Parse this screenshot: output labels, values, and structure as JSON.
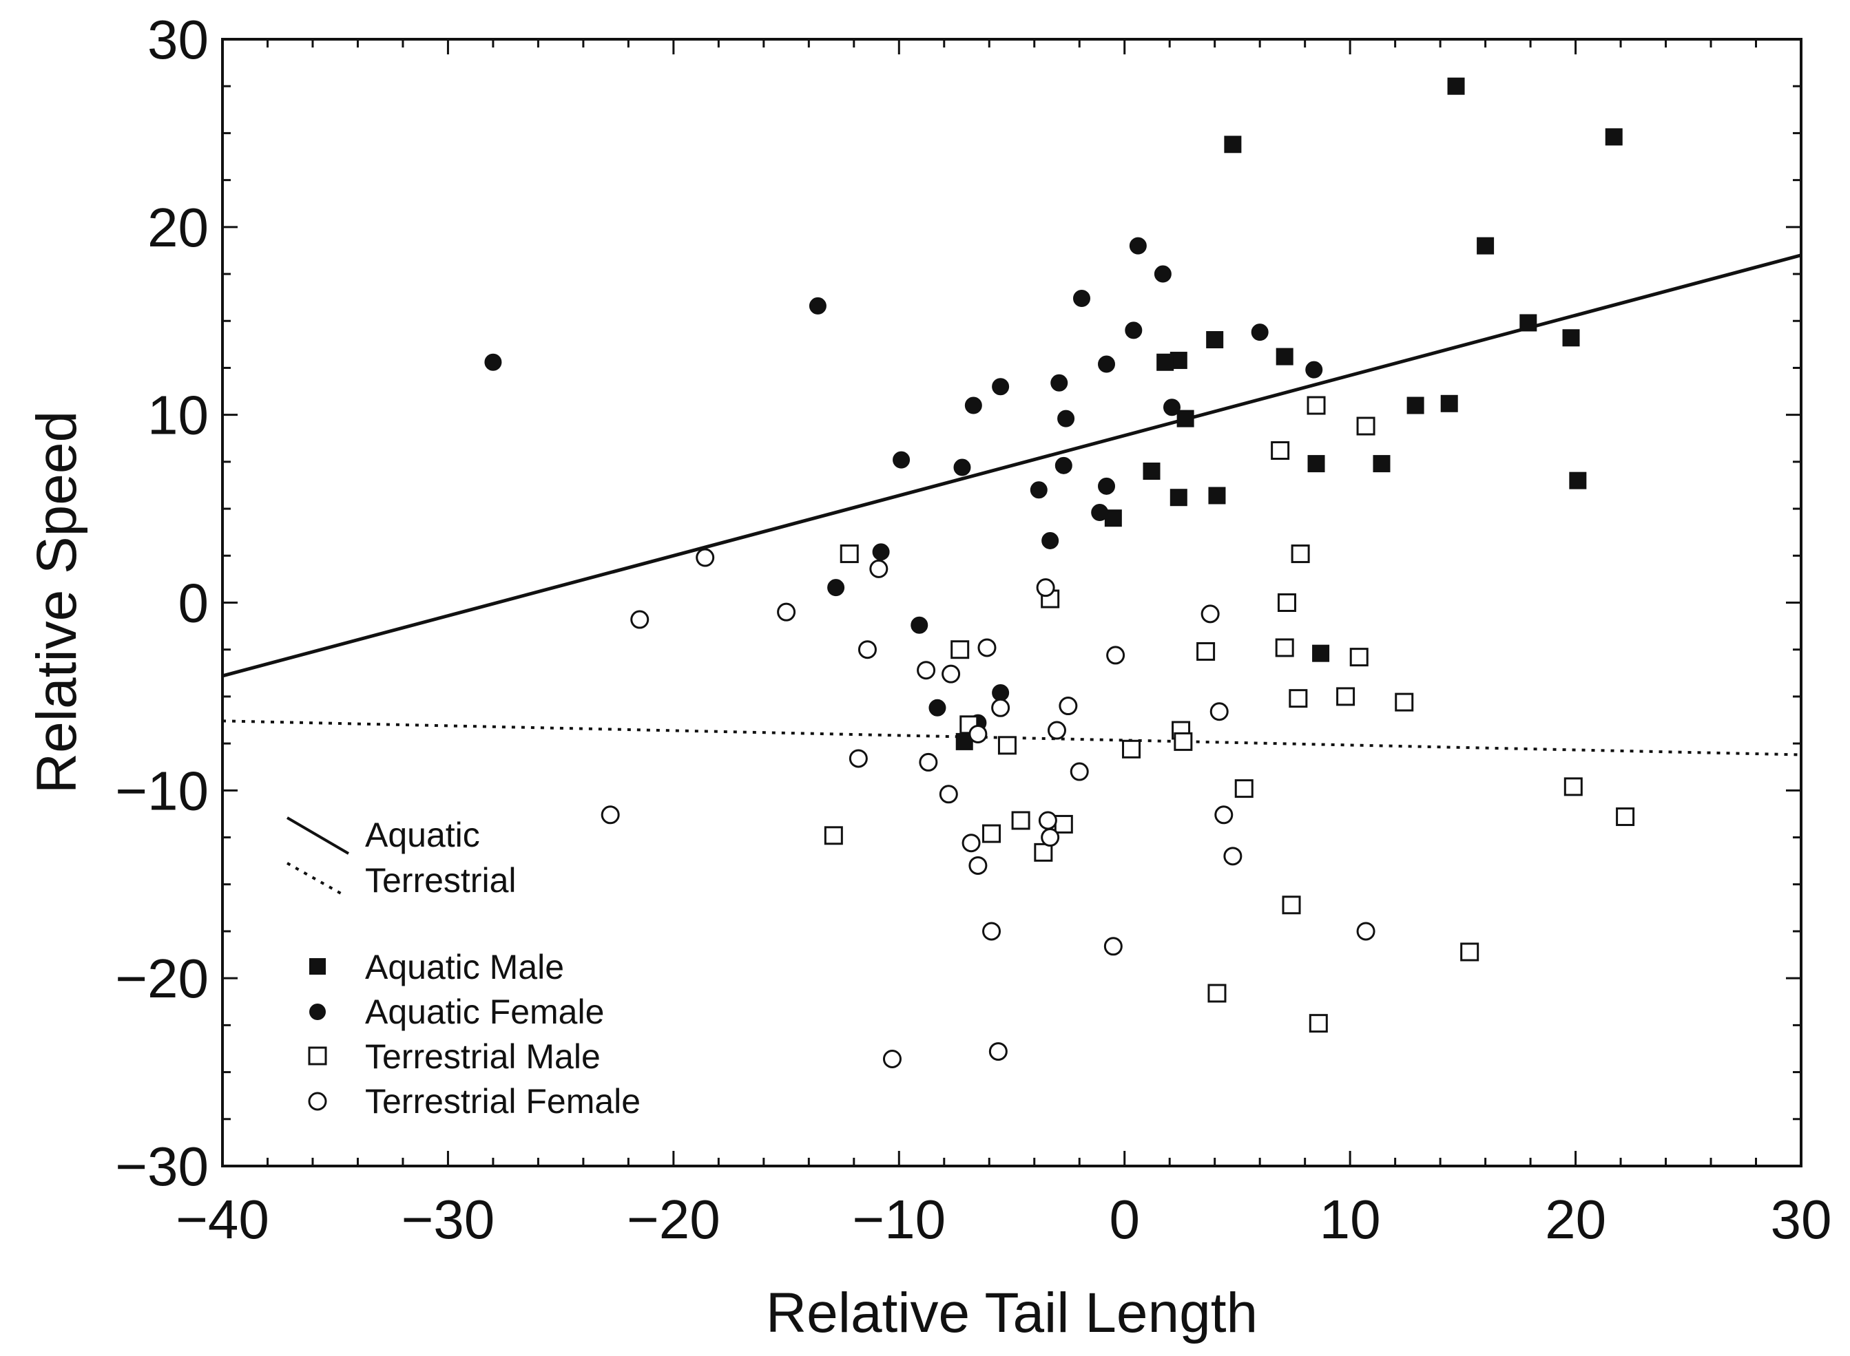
{
  "chart_data": {
    "type": "scatter",
    "title": "",
    "xlabel": "Relative Tail Length",
    "ylabel": "Relative Speed",
    "xlim": [
      -40,
      30
    ],
    "ylim": [
      -30,
      30
    ],
    "xticks": [
      -40,
      -30,
      -20,
      -10,
      0,
      10,
      20,
      30
    ],
    "yticks": [
      -30,
      -20,
      -10,
      0,
      10,
      20,
      30
    ],
    "xtick_labels": [
      "−40",
      "−30",
      "−20",
      "−10",
      "0",
      "10",
      "20",
      "30"
    ],
    "ytick_labels": [
      "−30",
      "−20",
      "−10",
      "0",
      "10",
      "20",
      "30"
    ],
    "lines": [
      {
        "name": "Aquatic",
        "style": "solid",
        "x": [
          -40,
          30
        ],
        "y": [
          -3.9,
          18.5
        ]
      },
      {
        "name": "Terrestrial",
        "style": "dotted",
        "x": [
          -40,
          30
        ],
        "y": [
          -6.3,
          -8.1
        ]
      }
    ],
    "series": [
      {
        "name": "Aquatic Male",
        "marker": "square-filled",
        "points": [
          [
            4.8,
            24.4
          ],
          [
            14.7,
            27.5
          ],
          [
            21.7,
            24.8
          ],
          [
            16.0,
            19.0
          ],
          [
            17.9,
            14.9
          ],
          [
            19.8,
            14.1
          ],
          [
            4.0,
            14.0
          ],
          [
            7.1,
            13.1
          ],
          [
            2.4,
            12.9
          ],
          [
            1.8,
            12.8
          ],
          [
            2.7,
            9.8
          ],
          [
            12.9,
            10.5
          ],
          [
            14.4,
            10.6
          ],
          [
            8.5,
            7.4
          ],
          [
            11.4,
            7.4
          ],
          [
            20.1,
            6.5
          ],
          [
            1.2,
            7.0
          ],
          [
            2.4,
            5.6
          ],
          [
            4.1,
            5.7
          ],
          [
            -0.5,
            4.5
          ],
          [
            8.7,
            -2.7
          ],
          [
            -7.1,
            -7.4
          ]
        ]
      },
      {
        "name": "Aquatic Female",
        "marker": "circle-filled",
        "points": [
          [
            -28.0,
            12.8
          ],
          [
            -13.6,
            15.8
          ],
          [
            -1.9,
            16.2
          ],
          [
            0.6,
            19.0
          ],
          [
            1.7,
            17.5
          ],
          [
            0.4,
            14.5
          ],
          [
            6.0,
            14.4
          ],
          [
            8.4,
            12.4
          ],
          [
            -0.8,
            12.7
          ],
          [
            -2.9,
            11.7
          ],
          [
            -5.5,
            11.5
          ],
          [
            -6.7,
            10.5
          ],
          [
            2.1,
            10.4
          ],
          [
            -2.6,
            9.8
          ],
          [
            -9.9,
            7.6
          ],
          [
            -7.2,
            7.2
          ],
          [
            -2.7,
            7.3
          ],
          [
            -3.8,
            6.0
          ],
          [
            -0.8,
            6.2
          ],
          [
            -1.1,
            4.8
          ],
          [
            -3.3,
            3.3
          ],
          [
            -10.8,
            2.7
          ],
          [
            -12.8,
            0.8
          ],
          [
            -9.1,
            -1.2
          ],
          [
            -5.5,
            -4.8
          ],
          [
            -8.3,
            -5.6
          ],
          [
            -6.5,
            -6.4
          ]
        ]
      },
      {
        "name": "Terrestrial Male",
        "marker": "square-open",
        "points": [
          [
            8.5,
            10.5
          ],
          [
            10.7,
            9.4
          ],
          [
            6.9,
            8.1
          ],
          [
            7.8,
            2.6
          ],
          [
            -12.2,
            2.6
          ],
          [
            -3.3,
            0.2
          ],
          [
            7.2,
            0.0
          ],
          [
            -7.3,
            -2.5
          ],
          [
            3.6,
            -2.6
          ],
          [
            7.1,
            -2.4
          ],
          [
            10.4,
            -2.9
          ],
          [
            7.7,
            -5.1
          ],
          [
            9.8,
            -5.0
          ],
          [
            12.4,
            -5.3
          ],
          [
            -6.9,
            -6.5
          ],
          [
            2.5,
            -6.8
          ],
          [
            2.6,
            -7.4
          ],
          [
            -5.2,
            -7.6
          ],
          [
            0.3,
            -7.8
          ],
          [
            5.3,
            -9.9
          ],
          [
            19.9,
            -9.8
          ],
          [
            22.2,
            -11.4
          ],
          [
            -4.6,
            -11.6
          ],
          [
            -2.7,
            -11.8
          ],
          [
            -12.9,
            -12.4
          ],
          [
            -5.9,
            -12.3
          ],
          [
            -3.6,
            -13.3
          ],
          [
            7.4,
            -16.1
          ],
          [
            15.3,
            -18.6
          ],
          [
            4.1,
            -20.8
          ],
          [
            8.6,
            -22.4
          ]
        ]
      },
      {
        "name": "Terrestrial Female",
        "marker": "circle-open",
        "points": [
          [
            -18.6,
            2.4
          ],
          [
            -10.9,
            1.8
          ],
          [
            -3.5,
            0.8
          ],
          [
            -21.5,
            -0.9
          ],
          [
            -15.0,
            -0.5
          ],
          [
            3.8,
            -0.6
          ],
          [
            -11.4,
            -2.5
          ],
          [
            -6.1,
            -2.4
          ],
          [
            -0.4,
            -2.8
          ],
          [
            -8.8,
            -3.6
          ],
          [
            -7.7,
            -3.8
          ],
          [
            -5.5,
            -5.6
          ],
          [
            -2.5,
            -5.5
          ],
          [
            4.2,
            -5.8
          ],
          [
            -6.5,
            -7.0
          ],
          [
            -3.0,
            -6.8
          ],
          [
            -11.8,
            -8.3
          ],
          [
            -8.7,
            -8.5
          ],
          [
            -2.0,
            -9.0
          ],
          [
            -7.8,
            -10.2
          ],
          [
            -22.8,
            -11.3
          ],
          [
            -3.4,
            -11.6
          ],
          [
            4.4,
            -11.3
          ],
          [
            -6.8,
            -12.8
          ],
          [
            -3.3,
            -12.5
          ],
          [
            4.8,
            -13.5
          ],
          [
            -6.5,
            -14.0
          ],
          [
            -5.9,
            -17.5
          ],
          [
            -0.5,
            -18.3
          ],
          [
            10.7,
            -17.5
          ],
          [
            -10.3,
            -24.3
          ],
          [
            -5.6,
            -23.9
          ]
        ]
      }
    ],
    "legend": {
      "lines": [
        "Aquatic",
        "Terrestrial"
      ],
      "markers": [
        "Aquatic Male",
        "Aquatic Female",
        "Terrestrial Male",
        "Terrestrial Female"
      ],
      "position": "bottom-left"
    }
  }
}
